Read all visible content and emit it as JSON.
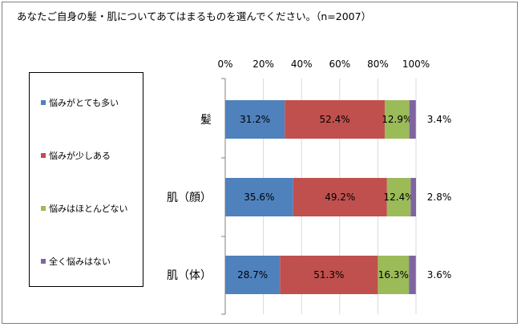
{
  "title": "あなたご自身の髪・肌についてあてはまるものを選んでください。（n=2007）",
  "colors": {
    "series": [
      "#4f81bd",
      "#c0504d",
      "#9bbb59",
      "#8064a2"
    ],
    "grid": "#d9d9d9"
  },
  "chart_data": {
    "type": "bar",
    "orientation": "horizontal",
    "stacked": true,
    "categories": [
      "髪",
      "肌（顔）",
      "肌（体）"
    ],
    "series": [
      {
        "name": "悩みがとても多い",
        "values": [
          31.2,
          35.6,
          28.7
        ]
      },
      {
        "name": "悩みが少しある",
        "values": [
          52.4,
          49.2,
          51.3
        ]
      },
      {
        "name": "悩みはほとんどない",
        "values": [
          12.9,
          12.4,
          16.3
        ]
      },
      {
        "name": "全く悩みはない",
        "values": [
          3.4,
          2.8,
          3.6
        ]
      }
    ],
    "data_labels": [
      [
        "31.2%",
        "52.4%",
        "12.9%",
        "3.4%"
      ],
      [
        "35.6%",
        "49.2%",
        "12.4%",
        "2.8%"
      ],
      [
        "28.7%",
        "51.3%",
        "16.3%",
        "3.6%"
      ]
    ],
    "xlim": [
      0,
      100
    ],
    "ticks": [
      0,
      20,
      40,
      60,
      80,
      100
    ],
    "tick_labels": [
      "0%",
      "20%",
      "40%",
      "60%",
      "80%",
      "100%"
    ],
    "legend": "left",
    "grid": true
  }
}
